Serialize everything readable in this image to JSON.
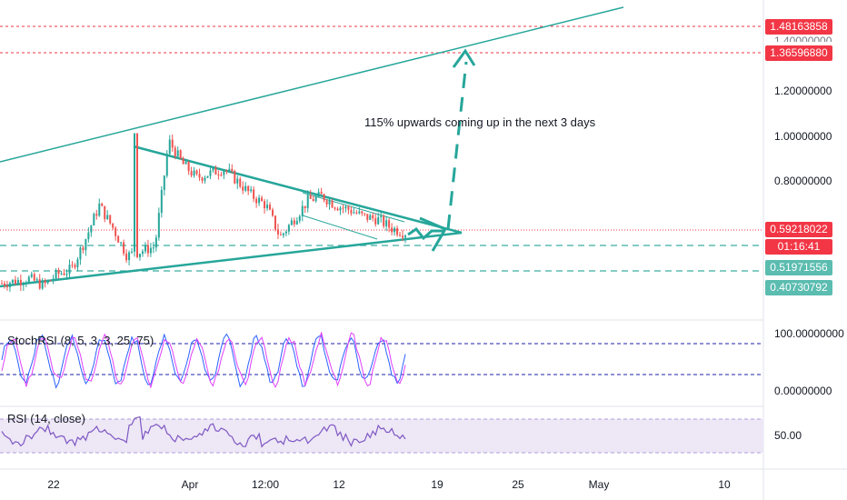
{
  "main_chart": {
    "annotation": "115% upwards coming up in the next 3 days",
    "y_ticks": [
      "1.20000000",
      "1.00000000",
      "0.80000000"
    ],
    "partial_tick": "1.40000000",
    "price_tags": [
      {
        "value": "1.48163858",
        "color": "#f23645"
      },
      {
        "value": "1.36596880",
        "color": "#f23645"
      },
      {
        "value": "0.59218022",
        "color": "#f23645"
      },
      {
        "value": "01:16:41",
        "color": "#f23645"
      },
      {
        "value": "0.51971556",
        "color": "#5bbcb0"
      },
      {
        "value": "0.40730792",
        "color": "#5bbcb0"
      }
    ],
    "colors": {
      "trendline": "#26a69a",
      "up": "#26a69a",
      "down": "#ef5350",
      "target_line": "#f23645"
    }
  },
  "stoch_rsi": {
    "label": "StochRSI (8, 5, 3, 3, 25, 75)",
    "y_ticks": [
      "100.00000000",
      "0.00000000"
    ],
    "colors": {
      "k": "#2962ff",
      "d": "#e040fb"
    }
  },
  "rsi": {
    "label": "RSI (14, close)",
    "y_tick": "50.00",
    "colors": {
      "line": "#7e57c2",
      "band": "#ede7f6"
    }
  },
  "x_axis": {
    "ticks": [
      "22",
      "Apr",
      "12:00",
      "12",
      "19",
      "25",
      "May",
      "10"
    ]
  },
  "chart_data": {
    "type": "candlestick",
    "title": "",
    "y_axis_labels": [
      "1.20000000",
      "1.00000000",
      "0.80000000"
    ],
    "x_axis_labels": [
      "22",
      "Apr",
      "12:00",
      "12",
      "19",
      "25",
      "May",
      "10"
    ],
    "series": [
      {
        "name": "",
        "levels": {
          "horizontal_lines": [
            1.48163858,
            1.3659688,
            0.59218022,
            0.51971556,
            0.40730792
          ]
        }
      },
      {
        "name": "",
        "approx_close": [
          0.36,
          0.37,
          0.38,
          0.35,
          0.4,
          0.42,
          0.55,
          0.7,
          0.6,
          0.48,
          0.5,
          0.52,
          0.98,
          0.88,
          0.82,
          0.84,
          0.86,
          0.8,
          0.74,
          0.7,
          0.56,
          0.64,
          0.72,
          0.74,
          0.7,
          0.68,
          0.65,
          0.64,
          0.6,
          0.58
        ]
      }
    ],
    "annotations": [
      "115% upwards coming up in the next 3 days"
    ],
    "indicators": [
      {
        "name": "StochRSI",
        "params": "8, 5, 3, 3, 25, 75",
        "levels": [
          25,
          75
        ],
        "ylim": [
          0,
          100
        ]
      },
      {
        "name": "RSI",
        "params": "14, close",
        "level": 50
      }
    ],
    "ylim": [
      0.4,
      1.55
    ]
  }
}
